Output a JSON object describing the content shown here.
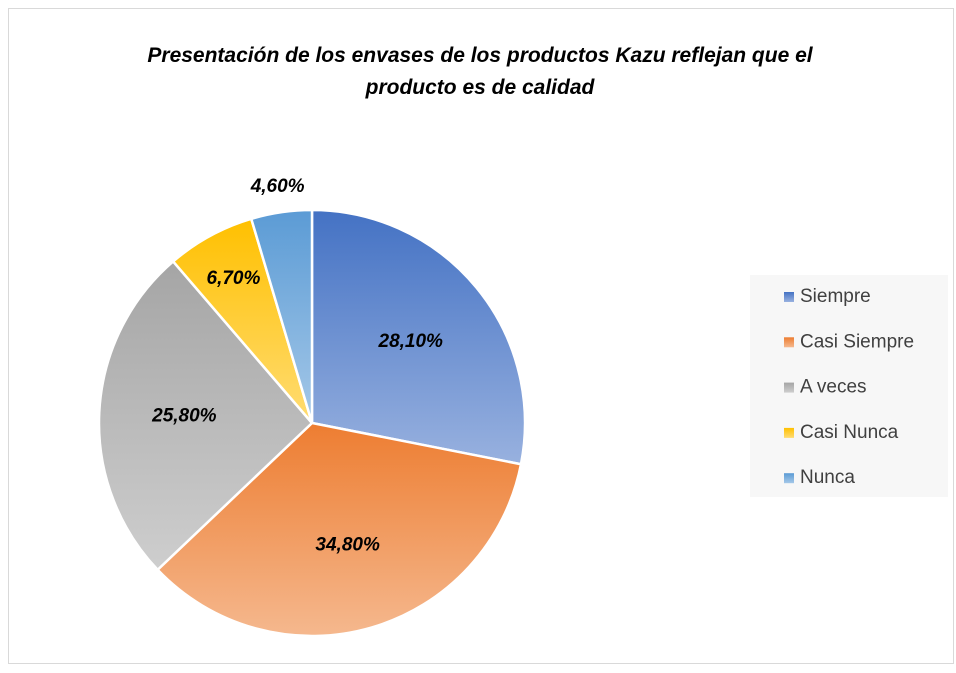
{
  "chart_data": {
    "type": "pie",
    "title": "Presentación de los envases de los productos Kazu reflejan que el producto es de calidad",
    "categories": [
      "Siempre",
      "Casi Siempre",
      "A veces",
      "Casi Nunca",
      "Nunca"
    ],
    "values": [
      28.1,
      34.8,
      25.8,
      6.7,
      4.6
    ],
    "value_labels": [
      "28,10%",
      "34,80%",
      "25,80%",
      "6,70%",
      "4,60%"
    ],
    "colors": [
      "#4472c4",
      "#ed7d31",
      "#a5a5a5",
      "#ffc000",
      "#5b9bd5"
    ],
    "legend": "right"
  }
}
